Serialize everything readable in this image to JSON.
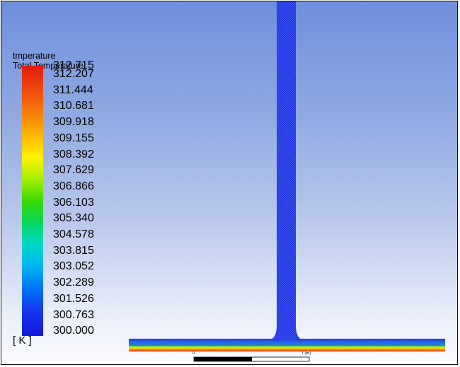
{
  "legend": {
    "title_line1": "tmperature",
    "title_line2": "Total Temperature",
    "unit": "[ K ]",
    "values": [
      "312.715",
      "312.207",
      "311.444",
      "310.681",
      "309.918",
      "309.155",
      "308.392",
      "307.629",
      "306.866",
      "306.103",
      "305.340",
      "304.578",
      "303.815",
      "303.052",
      "302.289",
      "301.526",
      "300.763",
      "300.000"
    ]
  },
  "scale": {
    "start_label": "0",
    "end_label": "1 (m)"
  },
  "colors": {
    "mesh_blue": "#1e2de0",
    "mesh_lines": "#3f5cf0",
    "hot_red": "#e21a10",
    "warm_yellow": "#f4e400",
    "mid_green": "#2ed24a",
    "cool_cyan": "#00c8e8"
  }
}
